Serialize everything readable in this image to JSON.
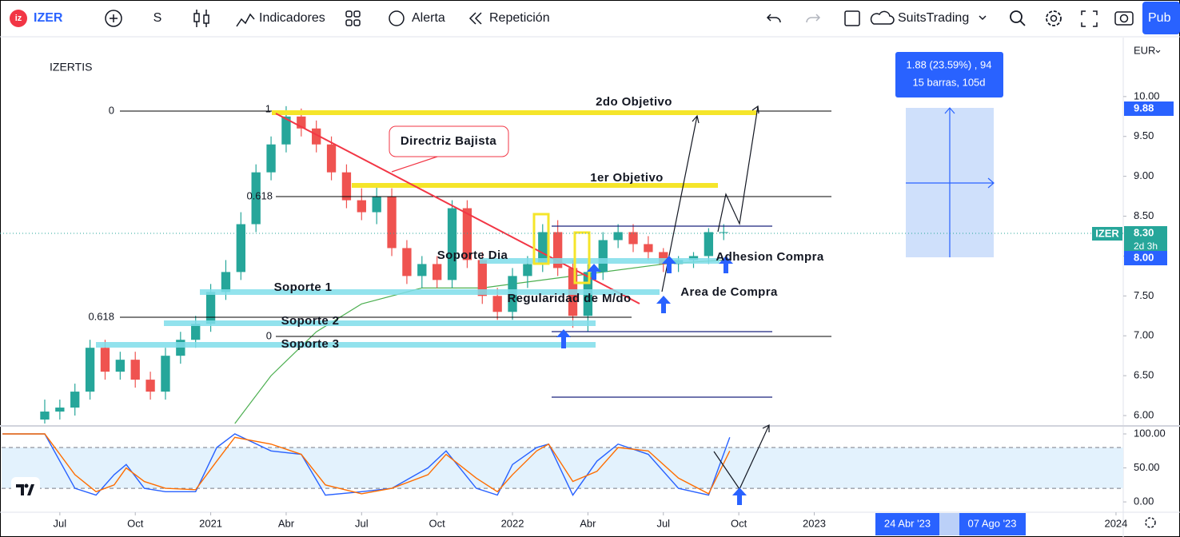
{
  "toolbar": {
    "symbol": "IZER",
    "interval": "S",
    "indicators": "Indicadores",
    "alert": "Alerta",
    "replay": "Repetición",
    "account": "SuitsTrading",
    "publish": "Pub"
  },
  "chart_data": [
    {
      "type": "candlestick",
      "title": "IZERTIS",
      "currency": "EUR",
      "x": [
        2020.45,
        2020.5,
        2020.55,
        2020.6,
        2020.65,
        2020.7,
        2020.75,
        2020.8,
        2020.85,
        2020.9,
        2020.95,
        2021.0,
        2021.05,
        2021.1,
        2021.15,
        2021.2,
        2021.25,
        2021.3,
        2021.35,
        2021.4,
        2021.45,
        2021.5,
        2021.55,
        2021.6,
        2021.65,
        2021.7,
        2021.75,
        2021.8,
        2021.85,
        2021.9,
        2021.95,
        2022.0,
        2022.05,
        2022.1,
        2022.15,
        2022.2,
        2022.25,
        2022.3,
        2022.35,
        2022.4,
        2022.45,
        2022.5,
        2022.55,
        2022.6,
        2022.65,
        2022.7
      ],
      "open": [
        5.95,
        6.05,
        6.1,
        6.3,
        6.85,
        6.55,
        6.7,
        6.45,
        6.3,
        6.75,
        6.95,
        7.15,
        7.55,
        7.8,
        8.4,
        9.05,
        9.4,
        9.75,
        9.6,
        9.4,
        9.05,
        8.7,
        8.55,
        8.75,
        8.1,
        7.75,
        7.9,
        7.7,
        8.6,
        7.95,
        7.5,
        7.3,
        7.75,
        7.9,
        8.3,
        7.85,
        7.25,
        7.8,
        8.2,
        8.3,
        8.15,
        8.05,
        7.9,
        7.95,
        8.0,
        8.3
      ],
      "high": [
        6.2,
        6.2,
        6.4,
        6.95,
        6.95,
        6.8,
        6.8,
        6.55,
        6.85,
        7.05,
        7.25,
        7.65,
        7.95,
        8.55,
        9.15,
        9.5,
        9.88,
        9.85,
        9.7,
        9.5,
        9.15,
        8.85,
        8.9,
        8.85,
        8.2,
        8.0,
        8.0,
        8.7,
        8.7,
        8.05,
        7.6,
        7.85,
        8.0,
        8.4,
        8.45,
        7.95,
        7.9,
        8.3,
        8.4,
        8.4,
        8.25,
        8.1,
        8.0,
        8.05,
        8.35,
        8.4
      ],
      "low": [
        5.9,
        5.95,
        6.0,
        6.2,
        6.45,
        6.45,
        6.35,
        6.2,
        6.2,
        6.65,
        6.85,
        7.05,
        7.45,
        7.7,
        8.3,
        8.95,
        9.3,
        9.5,
        9.3,
        8.95,
        8.6,
        8.45,
        8.4,
        8.0,
        7.65,
        7.6,
        7.6,
        7.6,
        7.85,
        7.4,
        7.2,
        7.2,
        7.6,
        7.8,
        7.75,
        7.1,
        7.05,
        7.7,
        8.1,
        8.05,
        7.95,
        7.8,
        7.8,
        7.85,
        7.9,
        8.2
      ],
      "close": [
        6.05,
        6.1,
        6.3,
        6.85,
        6.55,
        6.7,
        6.45,
        6.3,
        6.75,
        6.95,
        7.15,
        7.55,
        7.8,
        8.4,
        9.05,
        9.4,
        9.75,
        9.6,
        9.4,
        9.05,
        8.7,
        8.55,
        8.75,
        8.1,
        7.75,
        7.9,
        7.7,
        8.6,
        7.95,
        7.5,
        7.3,
        7.75,
        7.9,
        8.3,
        7.85,
        7.25,
        7.8,
        8.2,
        8.3,
        8.15,
        8.05,
        7.9,
        7.95,
        8.0,
        8.3,
        8.3
      ],
      "up_color": "#26a69a",
      "down_color": "#ef5350",
      "overlay": {
        "color": "#4caf50",
        "x": [
          2021.08,
          2021.2,
          2021.35,
          2021.5,
          2021.7,
          2021.9,
          2022.1,
          2022.3,
          2022.5,
          2022.7
        ],
        "values": [
          5.9,
          6.5,
          7.05,
          7.4,
          7.6,
          7.6,
          7.7,
          7.8,
          7.9,
          7.95
        ]
      },
      "xlim": [
        2020.307,
        2024.024
      ],
      "xticks": [
        {
          "value": 2020.5,
          "label": "Jul"
        },
        {
          "value": 2020.75,
          "label": "Oct"
        },
        2021,
        {
          "value": 2021.25,
          "label": "Abr"
        },
        {
          "value": 2021.5,
          "label": "Jul"
        },
        {
          "value": 2021.75,
          "label": "Oct"
        },
        2022,
        {
          "value": 2022.25,
          "label": "Abr"
        },
        {
          "value": 2022.5,
          "label": "Jul"
        },
        {
          "value": 2022.75,
          "label": "Oct"
        },
        2023,
        2024
      ],
      "ylim": [
        5.9,
        10.73
      ],
      "yticks": [
        {
          "value": 6,
          "label": "6.00"
        },
        {
          "value": 6.5,
          "label": "6.50"
        },
        {
          "value": 7,
          "label": "7.00"
        },
        {
          "value": 7.5,
          "label": "7.50"
        },
        {
          "value": 8,
          "label": "8.00"
        },
        {
          "value": 8.5,
          "label": "8.50"
        },
        {
          "value": 9,
          "label": "9.00"
        },
        {
          "value": 9.5,
          "label": "9.50"
        },
        {
          "value": 10,
          "label": "10.00"
        }
      ],
      "grid": false
    },
    {
      "type": "line",
      "x": [
        2020.31,
        2020.45,
        2020.55,
        2020.62,
        2020.68,
        2020.72,
        2020.78,
        2020.85,
        2020.95,
        2021.02,
        2021.08,
        2021.2,
        2021.3,
        2021.38,
        2021.5,
        2021.6,
        2021.72,
        2021.78,
        2021.88,
        2021.95,
        2022.0,
        2022.08,
        2022.12,
        2022.2,
        2022.28,
        2022.35,
        2022.45,
        2022.55,
        2022.65,
        2022.72
      ],
      "series": [
        {
          "color": "#2962ff",
          "values": [
            100,
            100,
            20,
            10,
            40,
            55,
            20,
            15,
            15,
            80,
            100,
            75,
            70,
            10,
            15,
            20,
            50,
            75,
            20,
            10,
            55,
            80,
            85,
            10,
            60,
            85,
            70,
            20,
            10,
            95
          ]
        },
        {
          "color": "#ff6d00",
          "values": [
            100,
            100,
            40,
            15,
            25,
            50,
            30,
            20,
            18,
            60,
            95,
            85,
            70,
            25,
            12,
            20,
            40,
            70,
            35,
            15,
            40,
            75,
            85,
            30,
            45,
            80,
            75,
            35,
            12,
            75
          ]
        }
      ],
      "bands": [
        20,
        80
      ],
      "band_color": "#e3f2fd",
      "ylim": [
        -14,
        109.4
      ],
      "yticks": [
        {
          "value": 0,
          "label": "0.00"
        },
        {
          "value": 50,
          "label": "50.00"
        },
        {
          "value": 100,
          "label": "100.00"
        }
      ]
    }
  ],
  "annotations": {
    "target_2": "2do Objetivo",
    "target_1": "1er Objetivo",
    "trendline": "Directriz Bajista",
    "support_day": "Soporte Dia",
    "support_1": "Soporte 1",
    "support_2": "Soporte 2",
    "support_3": "Soporte 3",
    "regularity": "Regularidad de M/do",
    "adhesion": "Adhesion Compra",
    "buy_area": "Area de Compra",
    "fib_top_0": "0",
    "fib_top_1": "1",
    "fib_top_618": "0.618",
    "fib_low_618": "0.618",
    "fib_low_0": "0"
  },
  "measure": {
    "line1": "1.88 (23.59%) , 94",
    "line2": "15 barras, 105d"
  },
  "price_scale_labels": {
    "target": "9.88",
    "last": "8.30",
    "countdown": "2d 3h",
    "symbol": "IZER",
    "level": "8.00"
  },
  "time_scale_labels": [
    "24 Abr '23",
    "07 Ago '23"
  ]
}
